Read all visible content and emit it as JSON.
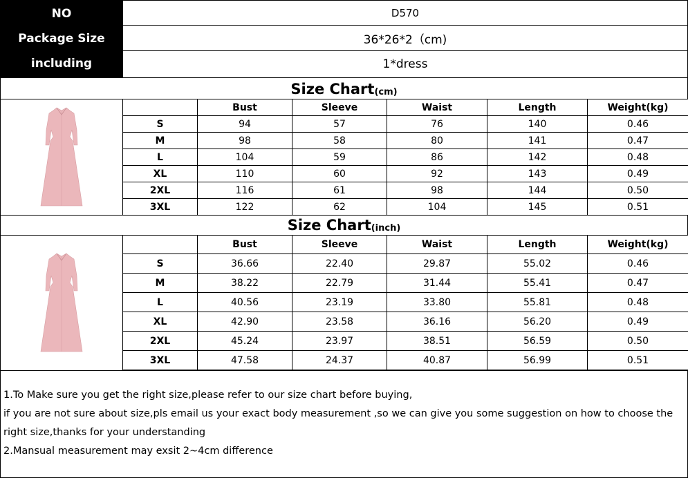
{
  "package": {
    "labels": [
      "NO",
      "Package Size",
      "including"
    ],
    "values": [
      "D570",
      "36*26*2（cm)",
      "1*dress"
    ]
  },
  "cm_chart": {
    "title": "Size Chart",
    "unit": "(cm)",
    "headers": [
      "",
      "Bust",
      "Sleeve",
      "Waist",
      "Length",
      "Weight(kg)"
    ],
    "rows": [
      [
        "S",
        "94",
        "57",
        "76",
        "140",
        "0.46"
      ],
      [
        "M",
        "98",
        "58",
        "80",
        "141",
        "0.47"
      ],
      [
        "L",
        "104",
        "59",
        "86",
        "142",
        "0.48"
      ],
      [
        "XL",
        "110",
        "60",
        "92",
        "143",
        "0.49"
      ],
      [
        "2XL",
        "116",
        "61",
        "98",
        "144",
        "0.50"
      ],
      [
        "3XL",
        "122",
        "62",
        "104",
        "145",
        "0.51"
      ]
    ]
  },
  "inch_chart": {
    "title": "Size Chart",
    "unit": "(inch)",
    "headers": [
      "",
      "Bust",
      "Sleeve",
      "Waist",
      "Length",
      "Weight(kg)"
    ],
    "rows": [
      [
        "S",
        "36.66",
        "22.40",
        "29.87",
        "55.02",
        "0.46"
      ],
      [
        "M",
        "38.22",
        "22.79",
        "31.44",
        "55.41",
        "0.47"
      ],
      [
        "L",
        "40.56",
        "23.19",
        "33.80",
        "55.81",
        "0.48"
      ],
      [
        "XL",
        "42.90",
        "23.58",
        "36.16",
        "56.20",
        "0.49"
      ],
      [
        "2XL",
        "45.24",
        "23.97",
        "38.51",
        "56.59",
        "0.50"
      ],
      [
        "3XL",
        "47.58",
        "24.37",
        "40.87",
        "56.99",
        "0.51"
      ]
    ]
  },
  "notes": [
    "1.To Make sure you get the right size,please refer to our size chart before buying,",
    "if you are not sure about size,pls email us your exact body measurement ,so we can give you some suggestion on how to choose the right size,thanks for your understanding",
    "2.Mansual measurement may exsit 2~4cm difference"
  ],
  "colors": {
    "dress": "#ebb7bb",
    "header_bg": "#000000"
  }
}
